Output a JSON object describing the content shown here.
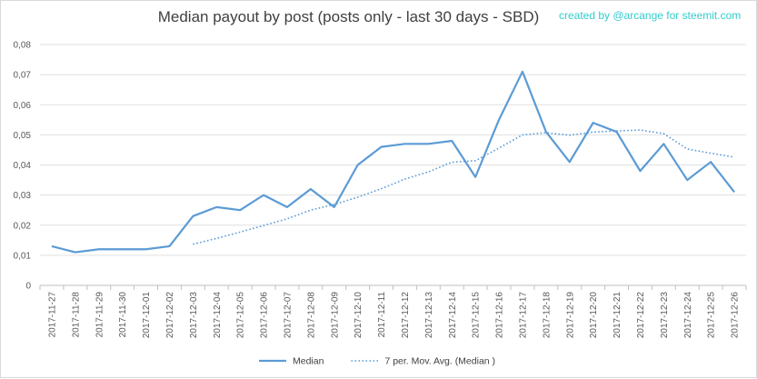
{
  "chart_data": {
    "type": "line",
    "title": "Median payout by post (posts only - last 30 days - SBD)",
    "credit": "created by @arcange for steemit.com",
    "xlabel": "",
    "ylabel": "",
    "ylim": [
      0,
      0.08
    ],
    "y_ticks": [
      "0",
      "0,01",
      "0,02",
      "0,03",
      "0,04",
      "0,05",
      "0,06",
      "0,07",
      "0,08"
    ],
    "grid": true,
    "legend_position": "bottom",
    "categories": [
      "2017-11-27",
      "2017-11-28",
      "2017-11-29",
      "2017-11-30",
      "2017-12-01",
      "2017-12-02",
      "2017-12-03",
      "2017-12-04",
      "2017-12-05",
      "2017-12-06",
      "2017-12-07",
      "2017-12-08",
      "2017-12-09",
      "2017-12-10",
      "2017-12-11",
      "2017-12-12",
      "2017-12-13",
      "2017-12-14",
      "2017-12-15",
      "2017-12-16",
      "2017-12-17",
      "2017-12-18",
      "2017-12-19",
      "2017-12-20",
      "2017-12-21",
      "2017-12-22",
      "2017-12-23",
      "2017-12-24",
      "2017-12-25",
      "2017-12-26"
    ],
    "series": [
      {
        "name": "Median",
        "style": "solid",
        "color": "#5b9bd5",
        "values": [
          0.013,
          0.011,
          0.012,
          0.012,
          0.012,
          0.013,
          0.023,
          0.026,
          0.025,
          0.03,
          0.026,
          0.032,
          0.026,
          0.04,
          0.046,
          0.047,
          0.047,
          0.048,
          0.036,
          0.055,
          0.071,
          0.051,
          0.041,
          0.054,
          0.051,
          0.038,
          0.047,
          0.035,
          0.041,
          0.031
        ]
      },
      {
        "name": "7 per. Mov. Avg. (Median )",
        "style": "dotted",
        "color": "#5b9bd5",
        "values": [
          null,
          null,
          null,
          null,
          null,
          null,
          0.0137,
          0.0156,
          0.0177,
          0.0199,
          0.0221,
          0.025,
          0.0269,
          0.0293,
          0.0321,
          0.0353,
          0.0377,
          0.0409,
          0.0414,
          0.0456,
          0.05,
          0.0507,
          0.0499,
          0.0509,
          0.0513,
          0.0516,
          0.0504,
          0.0453,
          0.0439,
          0.0426
        ]
      }
    ]
  }
}
